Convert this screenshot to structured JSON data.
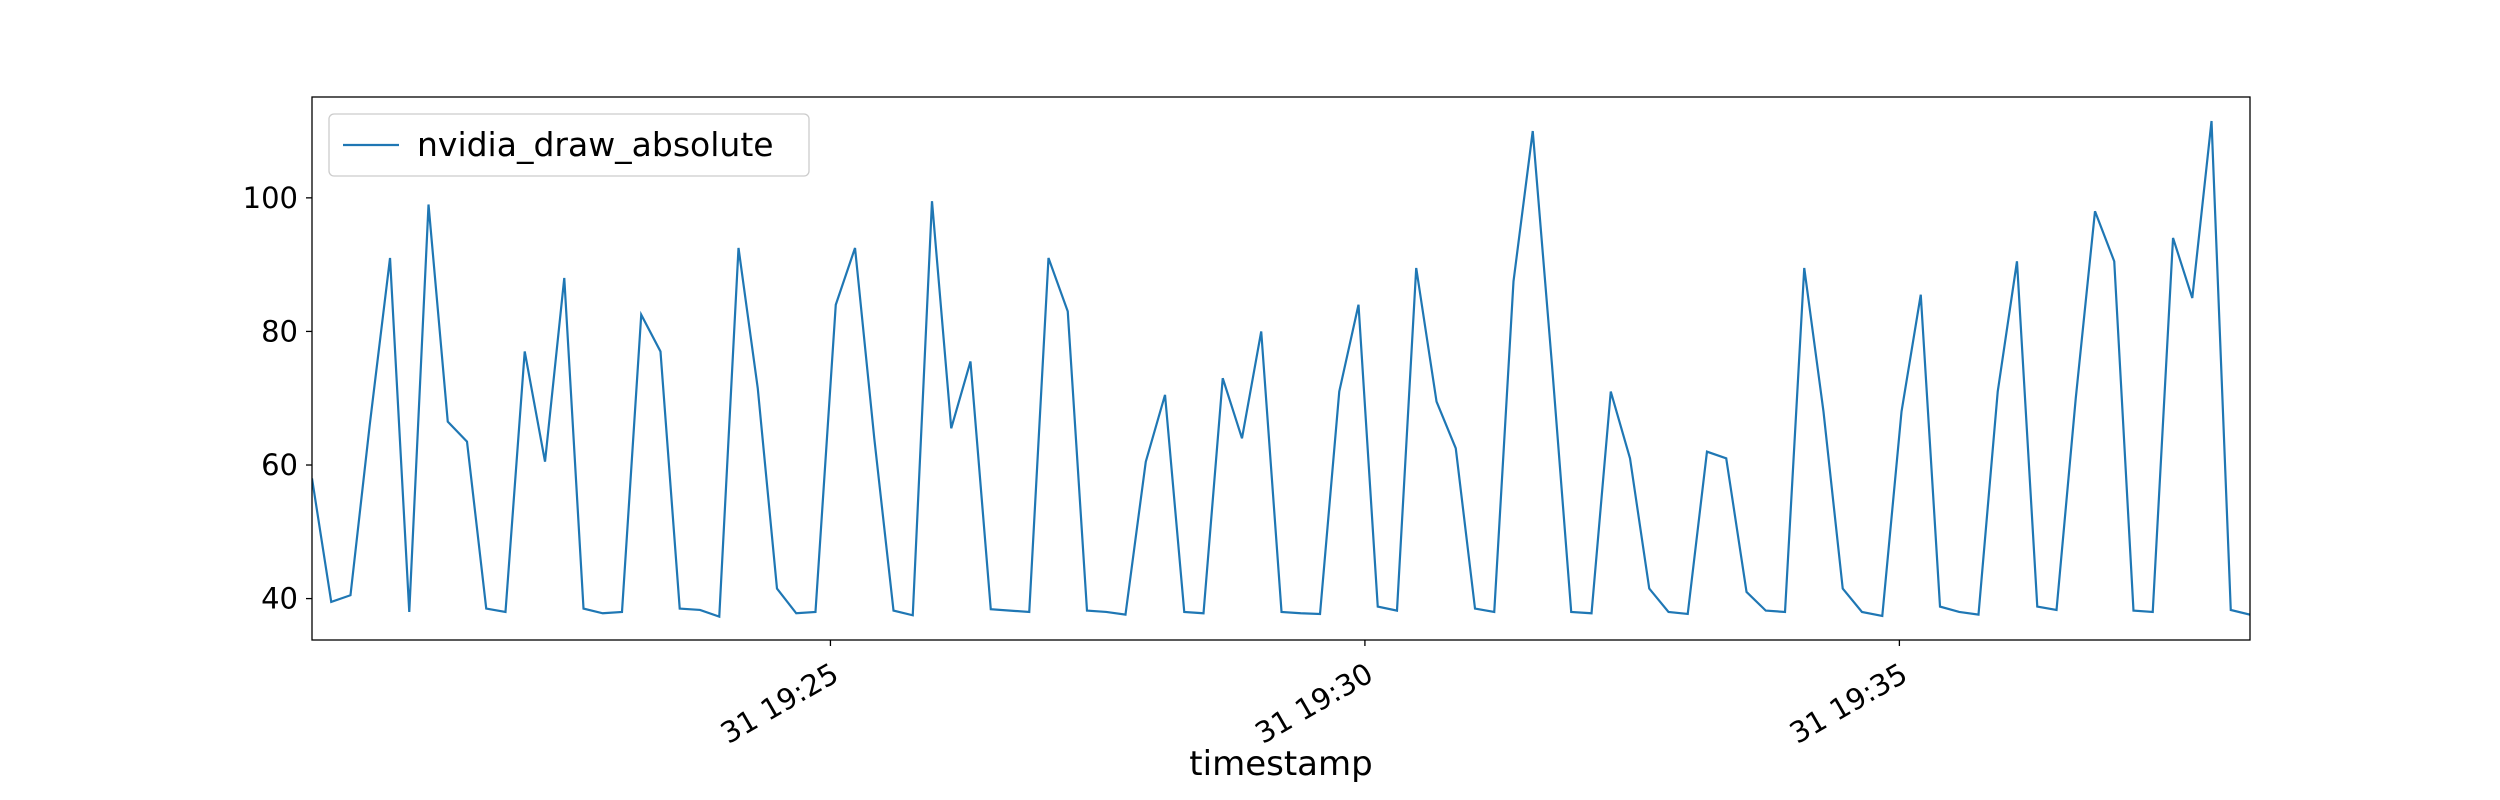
{
  "chart_data": {
    "type": "line",
    "xlabel": "timestamp",
    "x": [
      20.15,
      20.33,
      20.51,
      20.69,
      20.88,
      21.06,
      21.24,
      21.42,
      21.6,
      21.78,
      21.96,
      22.14,
      22.33,
      22.51,
      22.69,
      22.87,
      23.05,
      23.23,
      23.41,
      23.59,
      23.78,
      23.96,
      24.14,
      24.32,
      24.5,
      24.68,
      24.86,
      25.05,
      25.23,
      25.41,
      25.59,
      25.77,
      25.95,
      26.13,
      26.31,
      26.5,
      26.68,
      26.86,
      27.04,
      27.22,
      27.4,
      27.58,
      27.76,
      27.95,
      28.13,
      28.31,
      28.49,
      28.67,
      28.85,
      29.03,
      29.22,
      29.4,
      29.58,
      29.76,
      29.94,
      30.12,
      30.3,
      30.48,
      30.67,
      30.85,
      31.03,
      31.21,
      31.39,
      31.57,
      31.75,
      31.93,
      32.12,
      32.3,
      32.48,
      32.66,
      32.84,
      33.02,
      33.2,
      33.38,
      33.57,
      33.75,
      33.93,
      34.11,
      34.29,
      34.47,
      34.65,
      34.84,
      35.02,
      35.2,
      35.38,
      35.56,
      35.74,
      35.92,
      36.1,
      36.29,
      36.47,
      36.65,
      36.83,
      37.01,
      37.19,
      37.37,
      37.56,
      37.74,
      37.92,
      38.1,
      38.28
    ],
    "series": [
      {
        "name": "nvidia_draw_absolute",
        "color": "#1f77b4",
        "values": [
          58,
          39.5,
          40.5,
          66,
          91,
          38,
          99,
          66.5,
          63.5,
          38.5,
          38,
          77,
          60.5,
          88,
          38.5,
          37.8,
          38,
          82.5,
          77,
          38.5,
          38.3,
          37.3,
          92.5,
          71.5,
          41.5,
          37.8,
          38,
          84,
          92.5,
          64,
          38.2,
          37.5,
          99.5,
          65.5,
          75.5,
          38.4,
          38.2,
          38,
          91,
          83,
          38.2,
          38,
          37.6,
          60.5,
          70.5,
          38,
          37.8,
          73,
          64,
          80,
          38,
          37.8,
          37.7,
          71,
          84,
          38.8,
          38.2,
          89.5,
          69.5,
          62.5,
          38.5,
          38,
          87.5,
          110,
          75,
          38,
          37.8,
          71,
          61,
          41.5,
          38,
          37.7,
          62,
          61,
          41,
          38.2,
          38,
          89.5,
          68,
          41.5,
          38,
          37.4,
          68,
          85.5,
          38.8,
          38,
          37.6,
          71,
          90.5,
          38.8,
          38.3,
          70,
          98,
          90.5,
          38.2,
          38,
          94,
          85,
          111.5,
          38.3,
          37.6
        ]
      }
    ],
    "xlim": [
      20.15,
      38.28
    ],
    "xticks": [
      {
        "value": 25,
        "label": "31 19:25"
      },
      {
        "value": 30,
        "label": "31 19:30"
      },
      {
        "value": 35,
        "label": "31 19:35"
      }
    ],
    "ylim": [
      33.8,
      115.1
    ],
    "yticks": [
      40,
      60,
      80,
      100
    ],
    "legend": "upper left"
  }
}
